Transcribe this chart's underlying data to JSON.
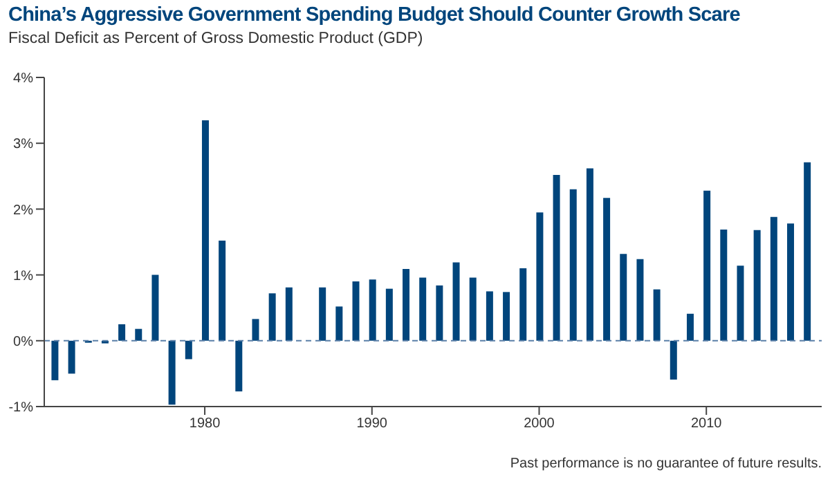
{
  "chart_data": {
    "type": "bar",
    "title": "China’s Aggressive Government Spending Budget Should Counter Growth Scare",
    "subtitle": "Fiscal Deficit as Percent of Gross Domestic Product (GDP)",
    "annotations": [
      "Past performance is no guarantee of future results."
    ],
    "x": [
      1971,
      1972,
      1973,
      1974,
      1975,
      1976,
      1977,
      1978,
      1979,
      1980,
      1981,
      1982,
      1983,
      1984,
      1985,
      1986,
      1987,
      1988,
      1989,
      1990,
      1991,
      1992,
      1993,
      1994,
      1995,
      1996,
      1997,
      1998,
      1999,
      2000,
      2001,
      2002,
      2003,
      2004,
      2005,
      2006,
      2007,
      2008,
      2009,
      2010,
      2011,
      2012,
      2013,
      2014,
      2015,
      2016
    ],
    "values": [
      -0.6,
      -0.5,
      -0.03,
      -0.04,
      0.25,
      0.18,
      1.0,
      -0.97,
      -0.28,
      3.35,
      1.52,
      -0.77,
      0.33,
      0.72,
      0.81,
      0,
      0.81,
      0.52,
      0.9,
      0.93,
      0.79,
      1.09,
      0.96,
      0.84,
      1.19,
      0.96,
      0.75,
      0.74,
      1.1,
      1.95,
      2.52,
      2.3,
      2.62,
      2.17,
      1.32,
      1.24,
      0.78,
      -0.59,
      0.41,
      2.28,
      1.69,
      1.14,
      1.68,
      1.88,
      1.78,
      2.71
    ],
    "color": "#00457c",
    "xlim": [
      1970.4,
      2016.9
    ],
    "xticks": [
      1980,
      1990,
      2000,
      2010
    ],
    "ylim": [
      -1,
      4
    ],
    "yticks": [
      {
        "value": -1,
        "label": "-1%"
      },
      {
        "value": 0,
        "label": "0%"
      },
      {
        "value": 1,
        "label": "1%"
      },
      {
        "value": 2,
        "label": "2%"
      },
      {
        "value": 3,
        "label": "3%"
      },
      {
        "value": 4,
        "label": "4%"
      }
    ],
    "ref_lines": [
      {
        "axis": "y",
        "value": 0,
        "color": "#5a7fa8",
        "line_style": "dashed"
      }
    ],
    "grid": false,
    "legend": false
  }
}
